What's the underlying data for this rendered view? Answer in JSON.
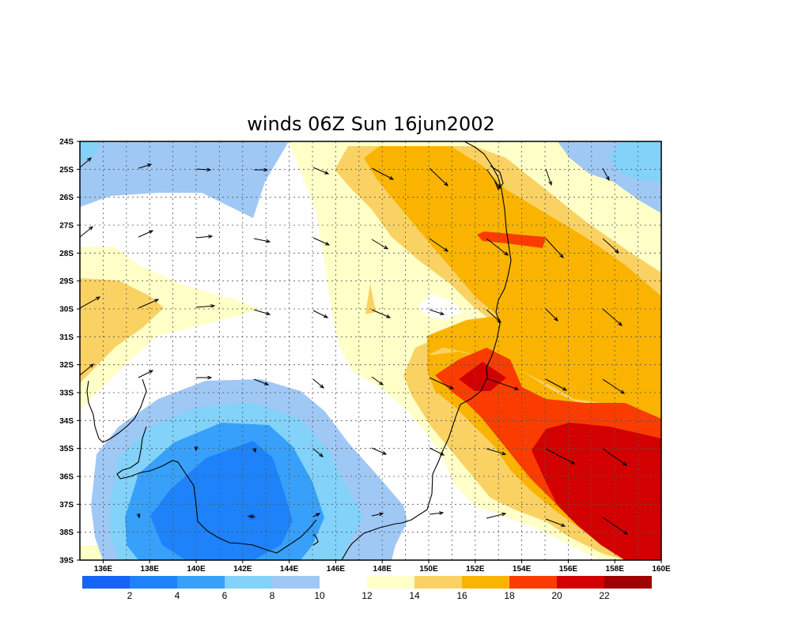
{
  "title": "winds 06Z Sun 16jun2002",
  "map": {
    "lon_range": [
      135,
      160
    ],
    "lat_range": [
      -39,
      -24
    ],
    "lat_labels": [
      "24S",
      "25S",
      "26S",
      "27S",
      "28S",
      "29S",
      "30S",
      "31S",
      "32S",
      "33S",
      "34S",
      "35S",
      "36S",
      "37S",
      "38S",
      "39S"
    ],
    "lon_labels": [
      "136E",
      "138E",
      "140E",
      "142E",
      "144E",
      "146E",
      "148E",
      "150E",
      "152E",
      "154E",
      "156E",
      "158E",
      "160E"
    ],
    "grid": "dotted"
  },
  "colorbar": {
    "colors": [
      "#1464f5",
      "#1e82fa",
      "#37a0fa",
      "#82d2fa",
      "#a0c8f5",
      "#ffffff",
      "#ffffc8",
      "#fad264",
      "#fab400",
      "#fa3c00",
      "#d20000",
      "#a00000"
    ],
    "labels": [
      "2",
      "4",
      "6",
      "8",
      "10",
      "12",
      "14",
      "16",
      "18",
      "20",
      "22"
    ]
  },
  "chart_data": {
    "type": "heatmap",
    "title": "winds 06Z Sun 16jun2002",
    "variable": "wind speed (shaded) with wind vectors",
    "levels": [
      2,
      4,
      6,
      8,
      10,
      12,
      14,
      16,
      18,
      20,
      22
    ],
    "x_ticks": [
      "136E",
      "138E",
      "140E",
      "142E",
      "144E",
      "146E",
      "148E",
      "150E",
      "152E",
      "154E",
      "156E",
      "158E",
      "160E"
    ],
    "y_ticks": [
      "24S",
      "25S",
      "26S",
      "27S",
      "28S",
      "29S",
      "30S",
      "31S",
      "32S",
      "33S",
      "34S",
      "35S",
      "36S",
      "37S",
      "38S",
      "39S"
    ],
    "regions_approx": [
      {
        "range": "<2 to 6",
        "centre": [
          141.5,
          -36.5
        ]
      },
      {
        "range": "14-20",
        "centre": [
          150.5,
          -26
        ]
      },
      {
        "range": "20-24",
        "centre": [
          157,
          -36.5
        ]
      },
      {
        "range": "14-16",
        "centre": [
          136,
          -30
        ]
      }
    ]
  }
}
